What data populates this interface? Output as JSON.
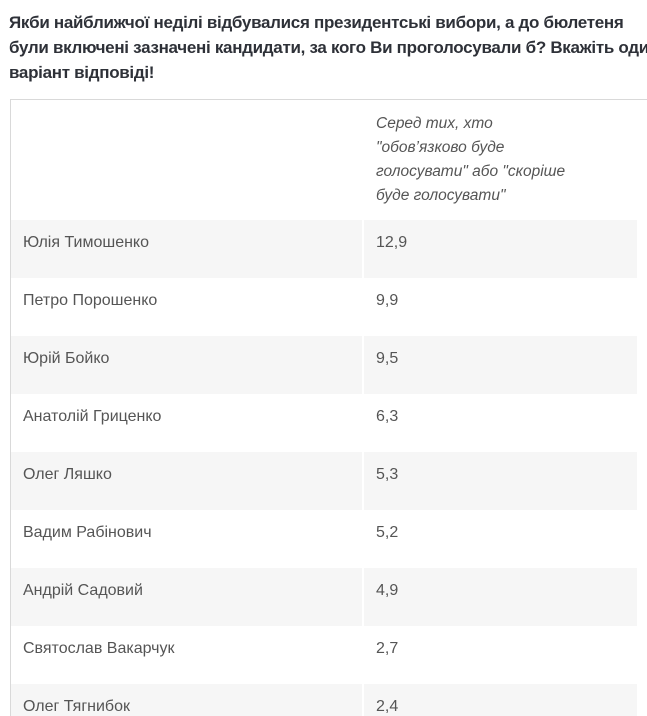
{
  "page": {
    "question": "Якби найближчої неділі відбувалися президентські вибори, а до бюлетеня були включені зазначені кандидати, за кого Ви проголосували б? Вкажіть один варіант відповіді!"
  },
  "table": {
    "column_header": "Серед тих, хто \"обов’язково буде голосувати\" або \"скоріше буде голосувати\"",
    "rows": [
      {
        "name": "Юлія Тимошенко",
        "value": "12,9"
      },
      {
        "name": "Петро Порошенко",
        "value": "9,9"
      },
      {
        "name": "Юрій Бойко",
        "value": "9,5"
      },
      {
        "name": "Анатолій Гриценко",
        "value": "6,3"
      },
      {
        "name": "Олег Ляшко",
        "value": "5,3"
      },
      {
        "name": "Вадим Рабінович",
        "value": "5,2"
      },
      {
        "name": "Андрій Садовий",
        "value": "4,9"
      },
      {
        "name": "Святослав Вакарчук",
        "value": "2,7"
      },
      {
        "name": "Олег Тягнибок",
        "value": "2,4"
      }
    ]
  },
  "chart_data": {
    "type": "table",
    "title": "Якби найближчої неділі відбувалися президентські вибори, а до бюлетеня були включені зазначені кандидати, за кого Ви проголосували б? Вкажіть один варіант відповіді!",
    "column_header": "Серед тих, хто \"обов’язково буде голосувати\" або \"скоріше буде голосувати\"",
    "categories": [
      "Юлія Тимошенко",
      "Петро Порошенко",
      "Юрій Бойко",
      "Анатолій Гриценко",
      "Олег Ляшко",
      "Вадим Рабінович",
      "Андрій Садовий",
      "Святослав Вакарчук",
      "Олег Тягнибок"
    ],
    "values": [
      12.9,
      9.9,
      9.5,
      6.3,
      5.3,
      5.2,
      4.9,
      2.7,
      2.4
    ],
    "value_format": "comma-decimal-percent"
  },
  "colors": {
    "question_text": "#2e3138",
    "cell_text": "#555555",
    "row_alt_background": "#f6f6f6",
    "table_border": "#d9d9d9",
    "page_background": "#ffffff"
  }
}
